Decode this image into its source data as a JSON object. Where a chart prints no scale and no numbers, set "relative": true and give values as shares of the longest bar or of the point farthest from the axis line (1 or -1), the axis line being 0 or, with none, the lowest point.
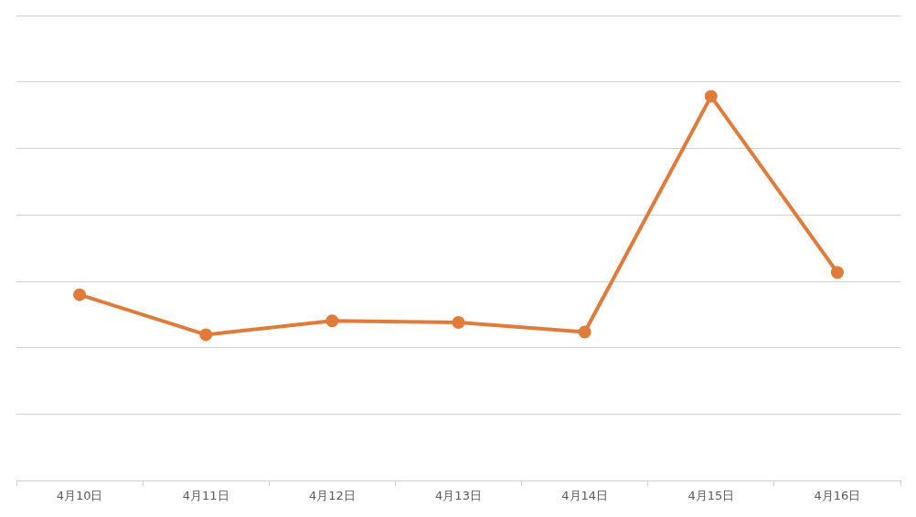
{
  "chart_data": {
    "type": "line",
    "relative": true,
    "categories": [
      "4月10日",
      "4月11日",
      "4月12日",
      "4月13日",
      "4月14日",
      "4月15日",
      "4月16日"
    ],
    "series": [
      {
        "color": "#e07b39",
        "values": [
          0.484,
          0.38,
          0.416,
          0.412,
          0.387,
          1,
          0.542
        ]
      }
    ],
    "marker": "circle",
    "grid": "y",
    "legend": false
  }
}
